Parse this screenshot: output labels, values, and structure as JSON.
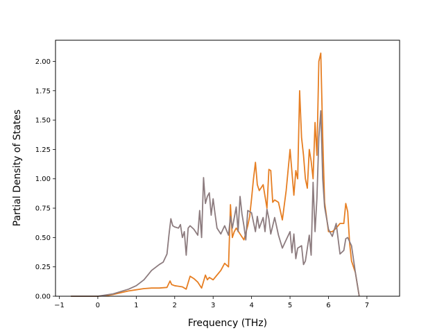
{
  "chart_data": {
    "type": "line",
    "title": "",
    "xlabel": "Frequency (THz)",
    "ylabel": "Partial Density of States",
    "xlim": [
      -1.1,
      7.85
    ],
    "ylim": [
      0,
      2.18
    ],
    "xticks": [
      -1,
      0,
      1,
      2,
      3,
      4,
      5,
      6,
      7
    ],
    "xtick_labels": [
      "−1",
      "0",
      "1",
      "2",
      "3",
      "4",
      "5",
      "6",
      "7"
    ],
    "yticks": [
      0,
      0.25,
      0.5,
      0.75,
      1.0,
      1.25,
      1.5,
      1.75,
      2.0
    ],
    "ytick_labels": [
      "0.00",
      "0.25",
      "0.50",
      "0.75",
      "1.00",
      "1.25",
      "1.50",
      "1.75",
      "2.00"
    ],
    "grid": false,
    "legend": "none",
    "series": [
      {
        "color": "#e67e22",
        "x": [
          -0.7,
          0.0,
          0.2,
          0.4,
          0.6,
          0.8,
          1.0,
          1.2,
          1.4,
          1.6,
          1.8,
          1.88,
          1.92,
          2.0,
          2.2,
          2.3,
          2.4,
          2.5,
          2.6,
          2.7,
          2.8,
          2.85,
          2.9,
          3.0,
          3.1,
          3.2,
          3.3,
          3.4,
          3.45,
          3.5,
          3.55,
          3.6,
          3.7,
          3.8,
          3.9,
          3.95,
          4.0,
          4.05,
          4.1,
          4.15,
          4.2,
          4.3,
          4.4,
          4.45,
          4.5,
          4.55,
          4.6,
          4.7,
          4.8,
          4.9,
          5.0,
          5.1,
          5.15,
          5.2,
          5.25,
          5.3,
          5.35,
          5.4,
          5.45,
          5.5,
          5.55,
          5.6,
          5.65,
          5.7,
          5.75,
          5.8,
          5.85,
          5.9,
          6.0,
          6.1,
          6.2,
          6.3,
          6.4,
          6.45,
          6.5,
          6.55,
          6.6,
          6.7,
          6.8
        ],
        "y": [
          0.0,
          0.0,
          0.005,
          0.015,
          0.03,
          0.045,
          0.055,
          0.065,
          0.07,
          0.07,
          0.075,
          0.13,
          0.1,
          0.09,
          0.08,
          0.06,
          0.17,
          0.15,
          0.12,
          0.07,
          0.18,
          0.14,
          0.16,
          0.14,
          0.18,
          0.22,
          0.28,
          0.25,
          0.78,
          0.5,
          0.55,
          0.58,
          0.53,
          0.48,
          0.6,
          0.68,
          0.83,
          1.0,
          1.14,
          0.95,
          0.9,
          0.95,
          0.75,
          1.08,
          1.07,
          0.8,
          0.82,
          0.8,
          0.65,
          0.9,
          1.25,
          0.86,
          1.07,
          1.0,
          1.75,
          1.35,
          1.2,
          1.0,
          0.92,
          1.25,
          1.15,
          1.0,
          1.48,
          1.2,
          2.0,
          2.07,
          1.35,
          0.8,
          0.55,
          0.55,
          0.58,
          0.62,
          0.62,
          0.79,
          0.72,
          0.45,
          0.3,
          0.2,
          0.0
        ]
      },
      {
        "color": "#8c7b7e",
        "x": [
          -0.7,
          0.0,
          0.2,
          0.4,
          0.6,
          0.8,
          1.0,
          1.2,
          1.4,
          1.6,
          1.7,
          1.8,
          1.85,
          1.9,
          1.95,
          2.0,
          2.1,
          2.15,
          2.2,
          2.25,
          2.3,
          2.35,
          2.4,
          2.5,
          2.6,
          2.65,
          2.7,
          2.75,
          2.8,
          2.85,
          2.9,
          2.95,
          3.0,
          3.05,
          3.1,
          3.2,
          3.3,
          3.4,
          3.45,
          3.5,
          3.6,
          3.65,
          3.7,
          3.75,
          3.8,
          3.85,
          3.9,
          4.0,
          4.1,
          4.15,
          4.2,
          4.3,
          4.35,
          4.4,
          4.45,
          4.5,
          4.6,
          4.7,
          4.8,
          4.9,
          5.0,
          5.05,
          5.1,
          5.15,
          5.2,
          5.3,
          5.35,
          5.4,
          5.5,
          5.55,
          5.6,
          5.65,
          5.7,
          5.75,
          5.8,
          5.85,
          5.9,
          6.0,
          6.1,
          6.2,
          6.3,
          6.4,
          6.45,
          6.5,
          6.6,
          6.7,
          6.8
        ],
        "y": [
          0.0,
          0.0,
          0.01,
          0.02,
          0.04,
          0.06,
          0.09,
          0.14,
          0.22,
          0.27,
          0.29,
          0.36,
          0.52,
          0.66,
          0.6,
          0.59,
          0.58,
          0.61,
          0.5,
          0.55,
          0.35,
          0.58,
          0.6,
          0.57,
          0.52,
          0.73,
          0.5,
          1.01,
          0.79,
          0.85,
          0.88,
          0.69,
          0.83,
          0.7,
          0.58,
          0.53,
          0.6,
          0.52,
          0.68,
          0.58,
          0.76,
          0.55,
          0.85,
          0.7,
          0.6,
          0.48,
          0.73,
          0.71,
          0.55,
          0.68,
          0.58,
          0.67,
          0.55,
          0.74,
          0.66,
          0.53,
          0.67,
          0.52,
          0.41,
          0.48,
          0.55,
          0.37,
          0.53,
          0.32,
          0.41,
          0.43,
          0.27,
          0.3,
          0.52,
          0.35,
          0.97,
          0.55,
          0.83,
          1.35,
          1.58,
          1.0,
          0.76,
          0.57,
          0.51,
          0.62,
          0.36,
          0.39,
          0.49,
          0.5,
          0.43,
          0.2,
          0.0
        ]
      }
    ]
  }
}
